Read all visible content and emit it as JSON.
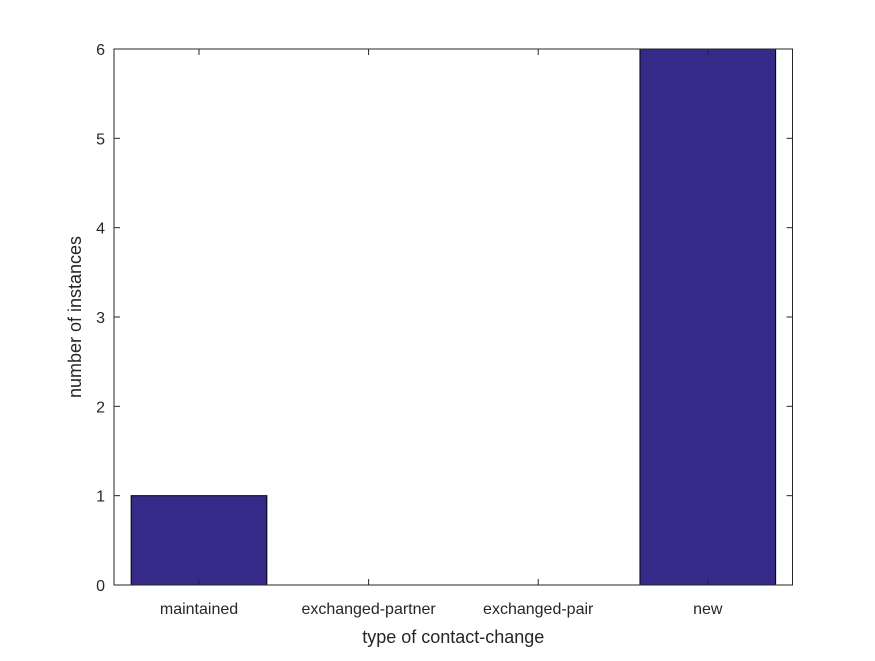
{
  "chart_data": {
    "type": "bar",
    "categories": [
      "maintained",
      "exchanged-partner",
      "exchanged-pair",
      "new"
    ],
    "values": [
      1,
      0,
      0,
      6
    ],
    "title": "",
    "xlabel": "type of contact-change",
    "ylabel": "number of instances",
    "ylim": [
      0,
      6
    ],
    "yticks": [
      0,
      1,
      2,
      3,
      4,
      5,
      6
    ],
    "grid": false,
    "bar_color": "#352a87",
    "axis_color": "#262626"
  }
}
